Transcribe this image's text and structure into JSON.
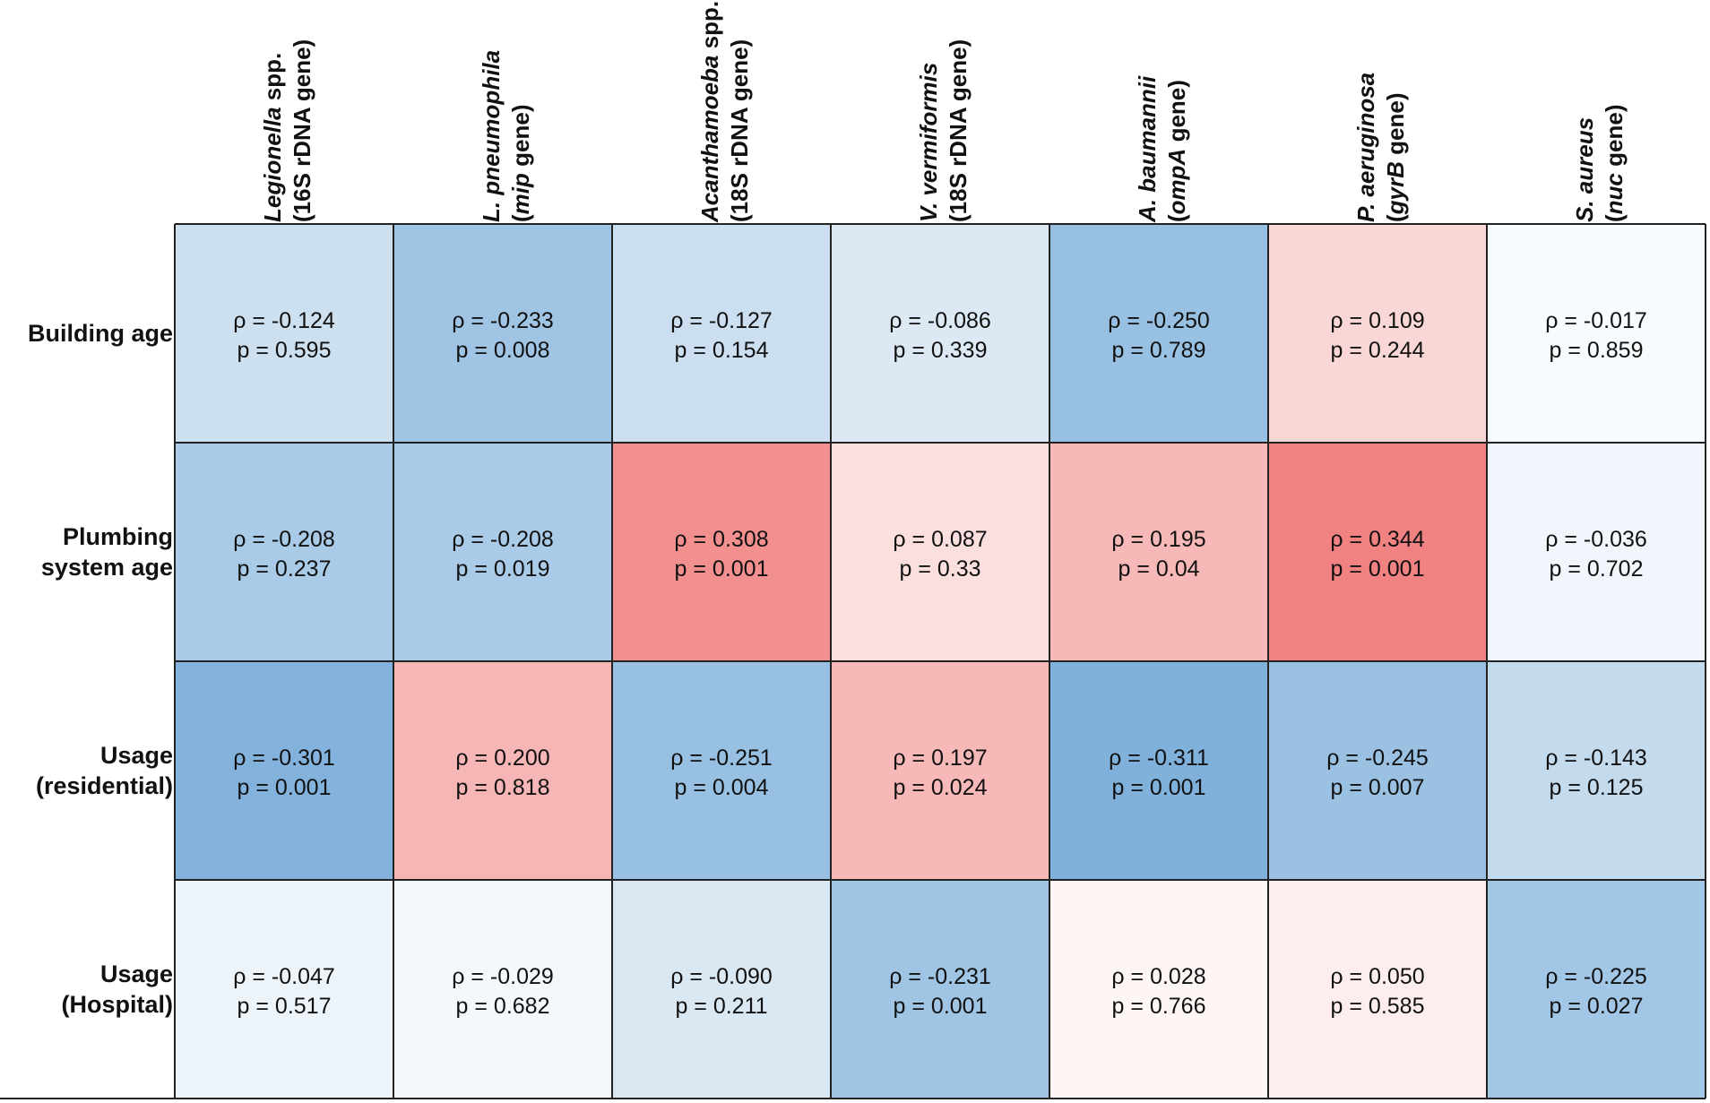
{
  "chart_data": {
    "type": "heatmap",
    "statistic_symbol": "ρ",
    "pvalue_symbol": "p",
    "columns": [
      {
        "id": "legionella",
        "line1": [
          {
            "t": "Legionella",
            "i": true
          },
          {
            "t": " spp.",
            "i": false
          }
        ],
        "line2": [
          {
            "t": "(16S rDNA gene)",
            "i": false
          }
        ]
      },
      {
        "id": "l-pneumophila",
        "line1": [
          {
            "t": "L. pneumophila",
            "i": true
          }
        ],
        "line2": [
          {
            "t": "(",
            "i": false
          },
          {
            "t": "mip",
            "i": true
          },
          {
            "t": " gene)",
            "i": false
          }
        ]
      },
      {
        "id": "acanthamoeba",
        "line1": [
          {
            "t": "Acanthamoeba",
            "i": true
          },
          {
            "t": " spp.",
            "i": false
          }
        ],
        "line2": [
          {
            "t": "(18S rDNA gene)",
            "i": false
          }
        ]
      },
      {
        "id": "v-vermiformis",
        "line1": [
          {
            "t": "V. vermiformis",
            "i": true
          }
        ],
        "line2": [
          {
            "t": "(18S rDNA gene)",
            "i": false
          }
        ]
      },
      {
        "id": "a-baumannii",
        "line1": [
          {
            "t": "A. baumannii",
            "i": true
          }
        ],
        "line2": [
          {
            "t": "(",
            "i": false
          },
          {
            "t": "ompA",
            "i": true
          },
          {
            "t": " gene)",
            "i": false
          }
        ]
      },
      {
        "id": "p-aeruginosa",
        "line1": [
          {
            "t": "P. aeruginosa",
            "i": true
          }
        ],
        "line2": [
          {
            "t": "(",
            "i": false
          },
          {
            "t": "gyrB",
            "i": true
          },
          {
            "t": " gene)",
            "i": false
          }
        ]
      },
      {
        "id": "s-aureus",
        "line1": [
          {
            "t": "S. aureus",
            "i": true
          }
        ],
        "line2": [
          {
            "t": "(",
            "i": false
          },
          {
            "t": "nuc",
            "i": true
          },
          {
            "t": " gene)",
            "i": false
          }
        ]
      }
    ],
    "rows": [
      {
        "id": "building-age",
        "label": [
          "Building age"
        ]
      },
      {
        "id": "plumbing-system-age",
        "label": [
          "Plumbing",
          "system age"
        ]
      },
      {
        "id": "usage-residential",
        "label": [
          "Usage",
          "(residential)"
        ]
      },
      {
        "id": "usage-hospital",
        "label": [
          "Usage",
          "(Hospital)"
        ]
      }
    ],
    "rho_display": [
      [
        "-0.124",
        "-0.233",
        "-0.127",
        "-0.086",
        "-0.250",
        "0.109",
        "-0.017"
      ],
      [
        "-0.208",
        "-0.208",
        "0.308",
        "0.087",
        "0.195",
        "0.344",
        "-0.036"
      ],
      [
        "-0.301",
        "0.200",
        "-0.251",
        "0.197",
        "-0.311",
        "-0.245",
        "-0.143"
      ],
      [
        "-0.047",
        "-0.029",
        "-0.090",
        "-0.231",
        "0.028",
        "0.050",
        "-0.225"
      ]
    ],
    "p_display": [
      [
        "0.595",
        "0.008",
        "0.154",
        "0.339",
        "0.789",
        "0.244",
        "0.859"
      ],
      [
        "0.237",
        "0.019",
        "0.001",
        "0.33",
        "0.04",
        "0.001",
        "0.702"
      ],
      [
        "0.001",
        "0.818",
        "0.004",
        "0.024",
        "0.001",
        "0.007",
        "0.125"
      ],
      [
        "0.517",
        "0.682",
        "0.211",
        "0.001",
        "0.766",
        "0.585",
        "0.027"
      ]
    ],
    "color_scale": {
      "neutral": "#ffffff",
      "positive": "#f08080",
      "negative": "#6fa7d6",
      "range": [
        -0.35,
        0.35
      ]
    },
    "grid_color": "#222222"
  }
}
